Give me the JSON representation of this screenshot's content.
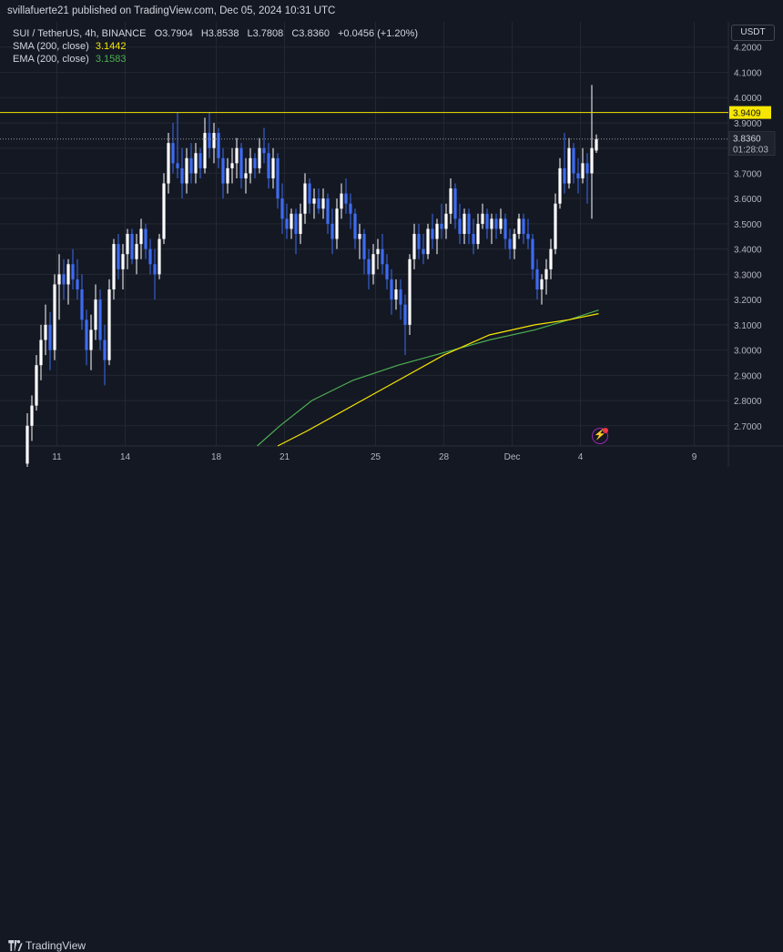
{
  "header": {
    "publisher": "svillafuerte21 published on TradingView.com, Dec 05, 2024 10:31 UTC"
  },
  "legend": {
    "symbol": "SUI / TetherUS, 4h, BINANCE",
    "open": "O3.7904",
    "high": "H3.8538",
    "low": "L3.7808",
    "close": "C3.8360",
    "change": "+0.0456 (+1.20%)",
    "sma_label": "SMA (200, close)",
    "sma_value": "3.1442",
    "ema_label": "EMA (200, close)",
    "ema_value": "3.1583"
  },
  "currency": "USDT",
  "footer": {
    "brand": "TradingView"
  },
  "colors": {
    "background": "#141823",
    "up": "#ffffff",
    "down": "#3d6cf2",
    "sma": "#f7e600",
    "ema": "#4caf50",
    "hline": "#f7e600",
    "grid": "#232733",
    "axis_text": "#b2b5be"
  },
  "icons": {
    "alert": "lightning-bolt-icon",
    "logo": "tradingview-logo-icon"
  },
  "chart_data": {
    "type": "candlestick",
    "title": "SUI / TetherUS, 4h, BINANCE",
    "ylim": [
      2.62,
      4.3
    ],
    "y_ticks": [
      "4.2000",
      "4.1000",
      "4.0000",
      "3.9000",
      "3.8000",
      "3.7000",
      "3.6000",
      "3.5000",
      "3.4000",
      "3.3000",
      "3.2000",
      "3.1000",
      "3.0000",
      "2.9000",
      "2.8000",
      "2.7000"
    ],
    "x_ticks": [
      "11",
      "14",
      "18",
      "21",
      "25",
      "28",
      "Dec",
      "4",
      "9"
    ],
    "x_tick_days": [
      11,
      14,
      18,
      21,
      25,
      28,
      31,
      34,
      39
    ],
    "horizontal_line": {
      "value": 3.9409,
      "label": "3.9409"
    },
    "last_price": {
      "value": 3.836,
      "label": "3.8360",
      "countdown": "01:28:03"
    },
    "grid": true,
    "candles": [
      {
        "d": 9.7,
        "o": 2.55,
        "h": 2.75,
        "l": 2.4,
        "c": 2.7
      },
      {
        "d": 9.9,
        "o": 2.7,
        "h": 2.82,
        "l": 2.64,
        "c": 2.78
      },
      {
        "d": 10.1,
        "o": 2.78,
        "h": 2.98,
        "l": 2.76,
        "c": 2.94
      },
      {
        "d": 10.3,
        "o": 2.94,
        "h": 3.1,
        "l": 2.88,
        "c": 3.04
      },
      {
        "d": 10.5,
        "o": 3.04,
        "h": 3.18,
        "l": 2.98,
        "c": 3.1
      },
      {
        "d": 10.7,
        "o": 3.1,
        "h": 3.15,
        "l": 2.92,
        "c": 3.0
      },
      {
        "d": 10.9,
        "o": 3.0,
        "h": 3.3,
        "l": 2.96,
        "c": 3.26
      },
      {
        "d": 11.1,
        "o": 3.26,
        "h": 3.38,
        "l": 3.12,
        "c": 3.3
      },
      {
        "d": 11.3,
        "o": 3.3,
        "h": 3.36,
        "l": 3.2,
        "c": 3.26
      },
      {
        "d": 11.5,
        "o": 3.26,
        "h": 3.36,
        "l": 3.18,
        "c": 3.34
      },
      {
        "d": 11.7,
        "o": 3.34,
        "h": 3.4,
        "l": 3.24,
        "c": 3.28
      },
      {
        "d": 11.9,
        "o": 3.28,
        "h": 3.36,
        "l": 3.2,
        "c": 3.24
      },
      {
        "d": 12.1,
        "o": 3.24,
        "h": 3.3,
        "l": 3.08,
        "c": 3.12
      },
      {
        "d": 12.3,
        "o": 3.12,
        "h": 3.16,
        "l": 2.94,
        "c": 3.0
      },
      {
        "d": 12.5,
        "o": 3.0,
        "h": 3.14,
        "l": 2.92,
        "c": 3.08
      },
      {
        "d": 12.7,
        "o": 3.08,
        "h": 3.26,
        "l": 3.04,
        "c": 3.2
      },
      {
        "d": 12.9,
        "o": 3.2,
        "h": 3.24,
        "l": 3.0,
        "c": 3.04
      },
      {
        "d": 13.1,
        "o": 3.04,
        "h": 3.1,
        "l": 2.86,
        "c": 2.96
      },
      {
        "d": 13.3,
        "o": 2.96,
        "h": 3.28,
        "l": 2.94,
        "c": 3.24
      },
      {
        "d": 13.5,
        "o": 3.24,
        "h": 3.44,
        "l": 3.2,
        "c": 3.42
      },
      {
        "d": 13.7,
        "o": 3.42,
        "h": 3.46,
        "l": 3.28,
        "c": 3.32
      },
      {
        "d": 13.9,
        "o": 3.32,
        "h": 3.42,
        "l": 3.24,
        "c": 3.38
      },
      {
        "d": 14.1,
        "o": 3.38,
        "h": 3.48,
        "l": 3.32,
        "c": 3.46
      },
      {
        "d": 14.3,
        "o": 3.46,
        "h": 3.48,
        "l": 3.34,
        "c": 3.36
      },
      {
        "d": 14.5,
        "o": 3.36,
        "h": 3.46,
        "l": 3.3,
        "c": 3.42
      },
      {
        "d": 14.7,
        "o": 3.42,
        "h": 3.52,
        "l": 3.36,
        "c": 3.48
      },
      {
        "d": 14.9,
        "o": 3.48,
        "h": 3.5,
        "l": 3.36,
        "c": 3.4
      },
      {
        "d": 15.1,
        "o": 3.4,
        "h": 3.44,
        "l": 3.3,
        "c": 3.34
      },
      {
        "d": 15.3,
        "o": 3.34,
        "h": 3.4,
        "l": 3.2,
        "c": 3.3
      },
      {
        "d": 15.5,
        "o": 3.3,
        "h": 3.46,
        "l": 3.28,
        "c": 3.44
      },
      {
        "d": 15.7,
        "o": 3.44,
        "h": 3.7,
        "l": 3.42,
        "c": 3.66
      },
      {
        "d": 15.9,
        "o": 3.66,
        "h": 3.86,
        "l": 3.62,
        "c": 3.82
      },
      {
        "d": 16.1,
        "o": 3.82,
        "h": 3.9,
        "l": 3.7,
        "c": 3.74
      },
      {
        "d": 16.3,
        "o": 3.74,
        "h": 3.94,
        "l": 3.68,
        "c": 3.72
      },
      {
        "d": 16.5,
        "o": 3.72,
        "h": 3.8,
        "l": 3.6,
        "c": 3.66
      },
      {
        "d": 16.7,
        "o": 3.66,
        "h": 3.8,
        "l": 3.62,
        "c": 3.76
      },
      {
        "d": 16.9,
        "o": 3.76,
        "h": 3.82,
        "l": 3.66,
        "c": 3.7
      },
      {
        "d": 17.1,
        "o": 3.7,
        "h": 3.82,
        "l": 3.66,
        "c": 3.78
      },
      {
        "d": 17.3,
        "o": 3.78,
        "h": 3.8,
        "l": 3.68,
        "c": 3.72
      },
      {
        "d": 17.5,
        "o": 3.72,
        "h": 3.92,
        "l": 3.7,
        "c": 3.86
      },
      {
        "d": 17.7,
        "o": 3.86,
        "h": 3.94,
        "l": 3.76,
        "c": 3.8
      },
      {
        "d": 17.9,
        "o": 3.8,
        "h": 3.9,
        "l": 3.74,
        "c": 3.86
      },
      {
        "d": 18.1,
        "o": 3.86,
        "h": 3.88,
        "l": 3.72,
        "c": 3.76
      },
      {
        "d": 18.3,
        "o": 3.76,
        "h": 3.8,
        "l": 3.6,
        "c": 3.66
      },
      {
        "d": 18.5,
        "o": 3.66,
        "h": 3.76,
        "l": 3.62,
        "c": 3.72
      },
      {
        "d": 18.7,
        "o": 3.72,
        "h": 3.8,
        "l": 3.66,
        "c": 3.74
      },
      {
        "d": 18.9,
        "o": 3.74,
        "h": 3.84,
        "l": 3.68,
        "c": 3.8
      },
      {
        "d": 19.1,
        "o": 3.8,
        "h": 3.82,
        "l": 3.64,
        "c": 3.68
      },
      {
        "d": 19.3,
        "o": 3.68,
        "h": 3.76,
        "l": 3.62,
        "c": 3.7
      },
      {
        "d": 19.5,
        "o": 3.7,
        "h": 3.8,
        "l": 3.66,
        "c": 3.76
      },
      {
        "d": 19.7,
        "o": 3.76,
        "h": 3.78,
        "l": 3.68,
        "c": 3.72
      },
      {
        "d": 19.9,
        "o": 3.72,
        "h": 3.84,
        "l": 3.7,
        "c": 3.8
      },
      {
        "d": 20.1,
        "o": 3.8,
        "h": 3.88,
        "l": 3.74,
        "c": 3.78
      },
      {
        "d": 20.3,
        "o": 3.78,
        "h": 3.82,
        "l": 3.64,
        "c": 3.68
      },
      {
        "d": 20.5,
        "o": 3.68,
        "h": 3.8,
        "l": 3.64,
        "c": 3.76
      },
      {
        "d": 20.7,
        "o": 3.76,
        "h": 3.78,
        "l": 3.56,
        "c": 3.6
      },
      {
        "d": 20.9,
        "o": 3.6,
        "h": 3.66,
        "l": 3.46,
        "c": 3.52
      },
      {
        "d": 21.1,
        "o": 3.52,
        "h": 3.58,
        "l": 3.44,
        "c": 3.48
      },
      {
        "d": 21.3,
        "o": 3.48,
        "h": 3.56,
        "l": 3.44,
        "c": 3.54
      },
      {
        "d": 21.5,
        "o": 3.54,
        "h": 3.56,
        "l": 3.38,
        "c": 3.46
      },
      {
        "d": 21.7,
        "o": 3.46,
        "h": 3.58,
        "l": 3.42,
        "c": 3.54
      },
      {
        "d": 21.9,
        "o": 3.54,
        "h": 3.7,
        "l": 3.5,
        "c": 3.66
      },
      {
        "d": 22.1,
        "o": 3.66,
        "h": 3.68,
        "l": 3.54,
        "c": 3.58
      },
      {
        "d": 22.3,
        "o": 3.58,
        "h": 3.64,
        "l": 3.52,
        "c": 3.6
      },
      {
        "d": 22.5,
        "o": 3.6,
        "h": 3.64,
        "l": 3.54,
        "c": 3.56
      },
      {
        "d": 22.7,
        "o": 3.56,
        "h": 3.64,
        "l": 3.52,
        "c": 3.6
      },
      {
        "d": 22.9,
        "o": 3.6,
        "h": 3.62,
        "l": 3.46,
        "c": 3.5
      },
      {
        "d": 23.1,
        "o": 3.5,
        "h": 3.56,
        "l": 3.38,
        "c": 3.44
      },
      {
        "d": 23.3,
        "o": 3.44,
        "h": 3.6,
        "l": 3.4,
        "c": 3.56
      },
      {
        "d": 23.5,
        "o": 3.56,
        "h": 3.66,
        "l": 3.52,
        "c": 3.62
      },
      {
        "d": 23.7,
        "o": 3.62,
        "h": 3.68,
        "l": 3.54,
        "c": 3.58
      },
      {
        "d": 23.9,
        "o": 3.58,
        "h": 3.62,
        "l": 3.48,
        "c": 3.54
      },
      {
        "d": 24.1,
        "o": 3.54,
        "h": 3.56,
        "l": 3.4,
        "c": 3.44
      },
      {
        "d": 24.3,
        "o": 3.44,
        "h": 3.5,
        "l": 3.36,
        "c": 3.46
      },
      {
        "d": 24.5,
        "o": 3.46,
        "h": 3.48,
        "l": 3.3,
        "c": 3.36
      },
      {
        "d": 24.7,
        "o": 3.36,
        "h": 3.4,
        "l": 3.24,
        "c": 3.3
      },
      {
        "d": 24.9,
        "o": 3.3,
        "h": 3.42,
        "l": 3.26,
        "c": 3.38
      },
      {
        "d": 25.1,
        "o": 3.38,
        "h": 3.44,
        "l": 3.32,
        "c": 3.4
      },
      {
        "d": 25.3,
        "o": 3.4,
        "h": 3.46,
        "l": 3.3,
        "c": 3.34
      },
      {
        "d": 25.5,
        "o": 3.34,
        "h": 3.38,
        "l": 3.24,
        "c": 3.28
      },
      {
        "d": 25.7,
        "o": 3.28,
        "h": 3.32,
        "l": 3.14,
        "c": 3.2
      },
      {
        "d": 25.9,
        "o": 3.2,
        "h": 3.28,
        "l": 3.16,
        "c": 3.24
      },
      {
        "d": 26.1,
        "o": 3.24,
        "h": 3.28,
        "l": 3.12,
        "c": 3.18
      },
      {
        "d": 26.3,
        "o": 3.18,
        "h": 3.22,
        "l": 2.98,
        "c": 3.1
      },
      {
        "d": 26.5,
        "o": 3.1,
        "h": 3.38,
        "l": 3.06,
        "c": 3.36
      },
      {
        "d": 26.7,
        "o": 3.36,
        "h": 3.5,
        "l": 3.32,
        "c": 3.46
      },
      {
        "d": 26.9,
        "o": 3.46,
        "h": 3.5,
        "l": 3.36,
        "c": 3.4
      },
      {
        "d": 27.1,
        "o": 3.4,
        "h": 3.46,
        "l": 3.34,
        "c": 3.38
      },
      {
        "d": 27.3,
        "o": 3.38,
        "h": 3.5,
        "l": 3.36,
        "c": 3.48
      },
      {
        "d": 27.5,
        "o": 3.48,
        "h": 3.54,
        "l": 3.4,
        "c": 3.44
      },
      {
        "d": 27.7,
        "o": 3.44,
        "h": 3.52,
        "l": 3.38,
        "c": 3.5
      },
      {
        "d": 27.9,
        "o": 3.5,
        "h": 3.58,
        "l": 3.44,
        "c": 3.48
      },
      {
        "d": 28.1,
        "o": 3.48,
        "h": 3.58,
        "l": 3.44,
        "c": 3.54
      },
      {
        "d": 28.3,
        "o": 3.54,
        "h": 3.68,
        "l": 3.5,
        "c": 3.64
      },
      {
        "d": 28.5,
        "o": 3.64,
        "h": 3.66,
        "l": 3.48,
        "c": 3.52
      },
      {
        "d": 28.7,
        "o": 3.52,
        "h": 3.58,
        "l": 3.42,
        "c": 3.46
      },
      {
        "d": 28.9,
        "o": 3.46,
        "h": 3.56,
        "l": 3.42,
        "c": 3.54
      },
      {
        "d": 29.1,
        "o": 3.54,
        "h": 3.56,
        "l": 3.42,
        "c": 3.46
      },
      {
        "d": 29.3,
        "o": 3.46,
        "h": 3.52,
        "l": 3.38,
        "c": 3.42
      },
      {
        "d": 29.5,
        "o": 3.42,
        "h": 3.54,
        "l": 3.4,
        "c": 3.5
      },
      {
        "d": 29.7,
        "o": 3.5,
        "h": 3.58,
        "l": 3.48,
        "c": 3.54
      },
      {
        "d": 29.9,
        "o": 3.54,
        "h": 3.56,
        "l": 3.44,
        "c": 3.48
      },
      {
        "d": 30.1,
        "o": 3.48,
        "h": 3.54,
        "l": 3.42,
        "c": 3.52
      },
      {
        "d": 30.3,
        "o": 3.52,
        "h": 3.54,
        "l": 3.44,
        "c": 3.48
      },
      {
        "d": 30.5,
        "o": 3.48,
        "h": 3.56,
        "l": 3.46,
        "c": 3.52
      },
      {
        "d": 30.7,
        "o": 3.52,
        "h": 3.54,
        "l": 3.4,
        "c": 3.44
      },
      {
        "d": 30.9,
        "o": 3.44,
        "h": 3.48,
        "l": 3.36,
        "c": 3.4
      },
      {
        "d": 31.1,
        "o": 3.4,
        "h": 3.48,
        "l": 3.36,
        "c": 3.46
      },
      {
        "d": 31.3,
        "o": 3.46,
        "h": 3.54,
        "l": 3.44,
        "c": 3.52
      },
      {
        "d": 31.5,
        "o": 3.52,
        "h": 3.54,
        "l": 3.42,
        "c": 3.46
      },
      {
        "d": 31.7,
        "o": 3.46,
        "h": 3.52,
        "l": 3.4,
        "c": 3.44
      },
      {
        "d": 31.9,
        "o": 3.44,
        "h": 3.46,
        "l": 3.28,
        "c": 3.32
      },
      {
        "d": 32.1,
        "o": 3.32,
        "h": 3.36,
        "l": 3.2,
        "c": 3.24
      },
      {
        "d": 32.3,
        "o": 3.24,
        "h": 3.3,
        "l": 3.18,
        "c": 3.28
      },
      {
        "d": 32.5,
        "o": 3.28,
        "h": 3.36,
        "l": 3.22,
        "c": 3.32
      },
      {
        "d": 32.7,
        "o": 3.32,
        "h": 3.44,
        "l": 3.28,
        "c": 3.4
      },
      {
        "d": 32.9,
        "o": 3.4,
        "h": 3.62,
        "l": 3.38,
        "c": 3.58
      },
      {
        "d": 33.1,
        "o": 3.58,
        "h": 3.76,
        "l": 3.56,
        "c": 3.72
      },
      {
        "d": 33.3,
        "o": 3.72,
        "h": 3.86,
        "l": 3.62,
        "c": 3.66
      },
      {
        "d": 33.5,
        "o": 3.66,
        "h": 3.84,
        "l": 3.64,
        "c": 3.8
      },
      {
        "d": 33.7,
        "o": 3.8,
        "h": 3.82,
        "l": 3.66,
        "c": 3.7
      },
      {
        "d": 33.9,
        "o": 3.7,
        "h": 3.76,
        "l": 3.62,
        "c": 3.68
      },
      {
        "d": 34.1,
        "o": 3.68,
        "h": 3.8,
        "l": 3.66,
        "c": 3.74
      },
      {
        "d": 34.3,
        "o": 3.74,
        "h": 3.78,
        "l": 3.58,
        "c": 3.7
      },
      {
        "d": 34.5,
        "o": 3.7,
        "h": 4.05,
        "l": 3.52,
        "c": 3.8
      },
      {
        "d": 34.7,
        "o": 3.7904,
        "h": 3.8538,
        "l": 3.7808,
        "c": 3.836
      }
    ],
    "sma": [
      [
        20.7,
        2.62
      ],
      [
        22,
        2.68
      ],
      [
        24,
        2.78
      ],
      [
        26,
        2.88
      ],
      [
        28,
        2.98
      ],
      [
        30,
        3.06
      ],
      [
        32,
        3.1
      ],
      [
        33.5,
        3.12
      ],
      [
        34.8,
        3.1442
      ]
    ],
    "ema": [
      [
        19.8,
        2.62
      ],
      [
        20.8,
        2.7
      ],
      [
        22.2,
        2.8
      ],
      [
        24,
        2.88
      ],
      [
        26,
        2.94
      ],
      [
        28,
        2.99
      ],
      [
        30,
        3.04
      ],
      [
        32,
        3.08
      ],
      [
        33.5,
        3.12
      ],
      [
        34.8,
        3.1583
      ]
    ]
  }
}
